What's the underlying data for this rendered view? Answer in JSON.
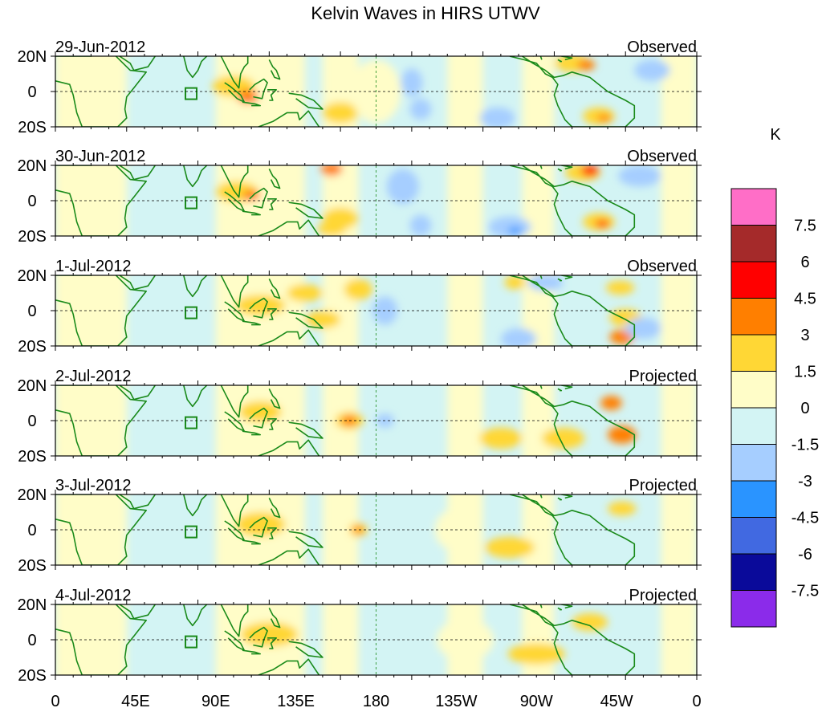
{
  "title": "Kelvin Waves in HIRS UTWV",
  "panels": [
    {
      "date": "29-Jun-2012",
      "status": "Observed"
    },
    {
      "date": "30-Jun-2012",
      "status": "Observed"
    },
    {
      "date": "1-Jul-2012",
      "status": "Observed"
    },
    {
      "date": "2-Jul-2012",
      "status": "Projected"
    },
    {
      "date": "3-Jul-2012",
      "status": "Projected"
    },
    {
      "date": "4-Jul-2012",
      "status": "Projected"
    }
  ],
  "lat_labels": [
    "20N",
    "0",
    "20S"
  ],
  "lon_labels": [
    "0",
    "45E",
    "90E",
    "135E",
    "180",
    "135W",
    "90W",
    "45W",
    "0"
  ],
  "colorbar": {
    "unit": "K",
    "labels": [
      "7.5",
      "6",
      "4.5",
      "3",
      "1.5",
      "0",
      "-1.5",
      "-3",
      "-4.5",
      "-6",
      "-7.5"
    ],
    "colors": [
      "#ff6ec7",
      "#a52a2a",
      "#ff0000",
      "#ff7f00",
      "#ffd735",
      "#fffdc8",
      "#d3f4f4",
      "#a6ceff",
      "#2a94ff",
      "#4169e1",
      "#0a0a9a",
      "#8b2bea"
    ]
  },
  "coast_color": "#1a8a1a"
}
